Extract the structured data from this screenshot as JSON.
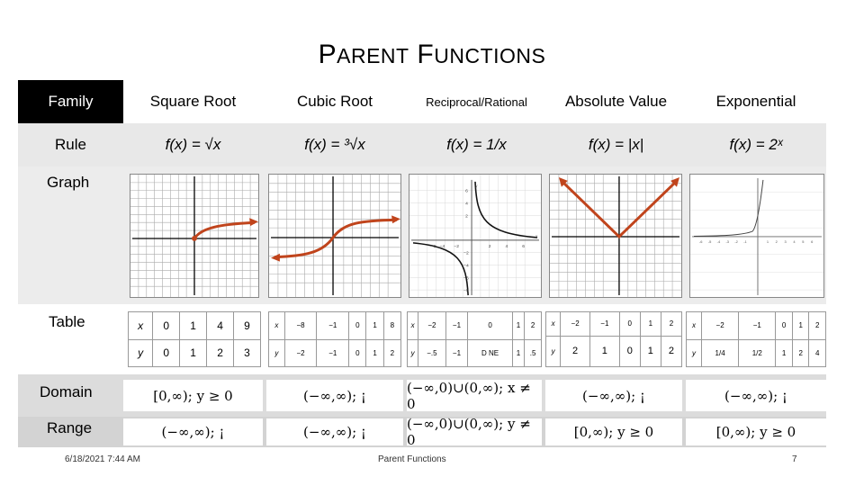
{
  "title": {
    "first": "P",
    "first_rest": "ARENT",
    "second": "F",
    "second_rest": "UNCTIONS"
  },
  "row_labels": {
    "family": "Family",
    "rule": "Rule",
    "graph": "Graph",
    "table": "Table",
    "domain": "Domain",
    "range": "Range"
  },
  "families": [
    "Square Root",
    "Cubic Root",
    "Reciprocal/Rational",
    "Absolute Value",
    "Exponential"
  ],
  "rules": [
    "f(x) = √x",
    "f(x) = ³√x",
    "f(x) = 1/x",
    "f(x) = |x|",
    "f(x) = 2ˣ"
  ],
  "tables": [
    {
      "x": [
        "x",
        "0",
        "1",
        "4",
        "9"
      ],
      "y": [
        "y",
        "0",
        "1",
        "2",
        "3"
      ]
    },
    {
      "x": [
        "x",
        "−8",
        "−1",
        "0",
        "1",
        "8"
      ],
      "y": [
        "y",
        "−2",
        "−1",
        "0",
        "1",
        "2"
      ]
    },
    {
      "x": [
        "x",
        "−2",
        "−1",
        "0",
        "1",
        "2"
      ],
      "y": [
        "y",
        "−.5",
        "−1",
        "D NE",
        "1",
        ".5"
      ]
    },
    {
      "x": [
        "x",
        "−2",
        "−1",
        "0",
        "1",
        "2"
      ],
      "y": [
        "y",
        "2",
        "1",
        "0",
        "1",
        "2"
      ]
    },
    {
      "x": [
        "x",
        "−2",
        "−1",
        "0",
        "1",
        "2"
      ],
      "y": [
        "y",
        "1/4",
        "1/2",
        "1",
        "2",
        "4"
      ]
    }
  ],
  "domains": [
    "[0,∞); y ≥ 0",
    "(−∞,∞); ¡",
    "(−∞,0)∪(0,∞); x ≠ 0",
    "(−∞,∞); ¡",
    "(−∞,∞); ¡"
  ],
  "ranges": [
    "(−∞,∞); ¡",
    "(−∞,∞); ¡",
    "(−∞,0)∪(0,∞); y ≠ 0",
    "[0,∞); y ≥ 0",
    "[0,∞); y ≥ 0"
  ],
  "graph_ticks": {
    "reciprocal_x": [
      "−6",
      "−4",
      "−2",
      "2",
      "4",
      "6"
    ],
    "reciprocal_y": [
      "6",
      "4",
      "2",
      "−2",
      "−4",
      "−6",
      "−8"
    ],
    "axis_y": "y",
    "axis_x": "x",
    "exponential_x": [
      "-6",
      "-5",
      "-4",
      "-3",
      "-2",
      "-1",
      "1",
      "2",
      "3",
      "4",
      "5",
      "6"
    ]
  },
  "footer": {
    "date": "6/18/2021 7:44 AM",
    "center": "Parent Functions",
    "page": "7"
  },
  "colors": {
    "curve": "#c0441c",
    "family_label_bg": "#000000"
  }
}
